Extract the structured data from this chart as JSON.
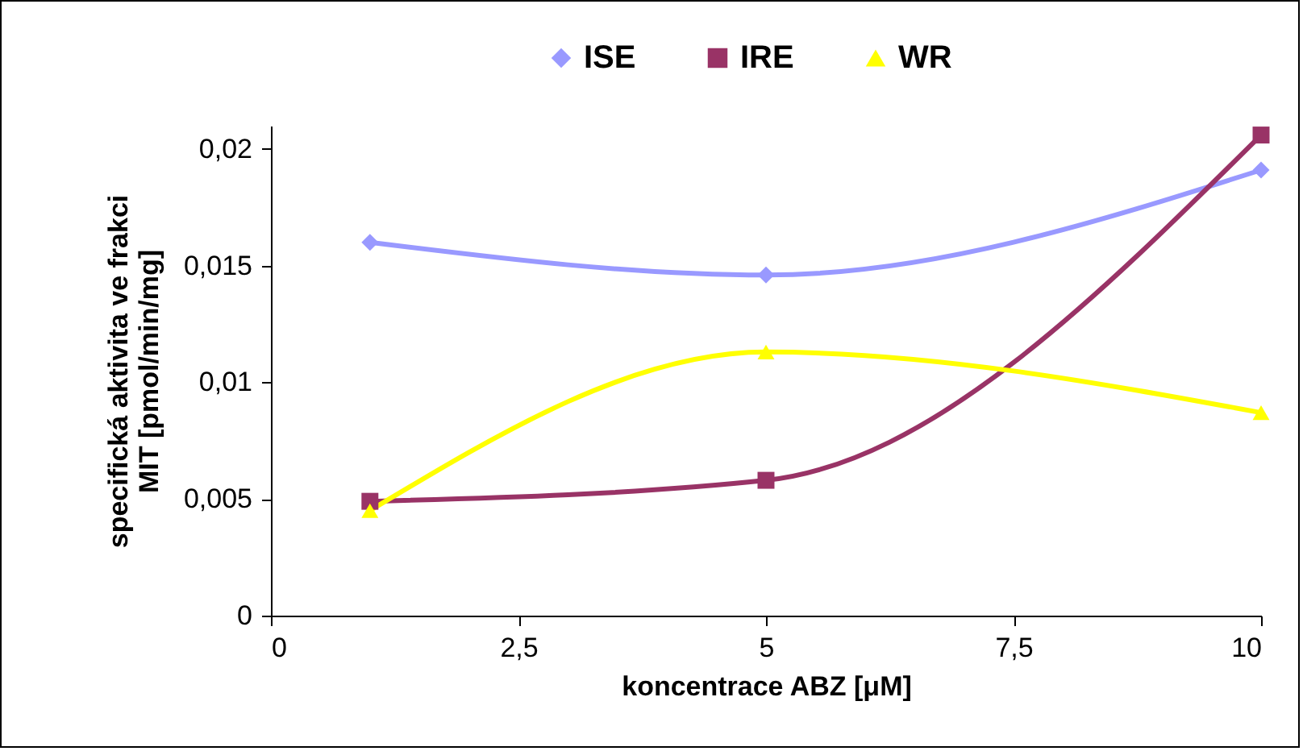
{
  "chart_data": {
    "type": "line",
    "xlabel": "koncentrace ABZ [μM]",
    "ylabel": "specifická aktivita ve frakci\nMIT [pmol/min/mg]",
    "x": [
      1,
      5,
      10
    ],
    "series": [
      {
        "name": "ISE",
        "color": "#9999ff",
        "marker": "diamond",
        "values": [
          0.016,
          0.0146,
          0.0191
        ]
      },
      {
        "name": "IRE",
        "color": "#993366",
        "marker": "square",
        "values": [
          0.0049,
          0.0058,
          0.0206
        ]
      },
      {
        "name": "WR",
        "color": "#ffff00",
        "marker": "triangle",
        "values": [
          0.0045,
          0.0113,
          0.0087
        ]
      }
    ],
    "xlim": [
      0,
      10
    ],
    "xticks": [
      0,
      {
        "value": 2.5,
        "label": "2,5"
      },
      5,
      {
        "value": 7.5,
        "label": "7,5"
      },
      10
    ],
    "ylim": [
      0,
      0.021
    ],
    "yticks": [
      0,
      {
        "value": 0.005,
        "label": "0,005"
      },
      {
        "value": 0.01,
        "label": "0,01"
      },
      {
        "value": 0.015,
        "label": "0,015"
      },
      {
        "value": 0.02,
        "label": "0,02"
      }
    ],
    "grid": false,
    "legend": "top"
  }
}
